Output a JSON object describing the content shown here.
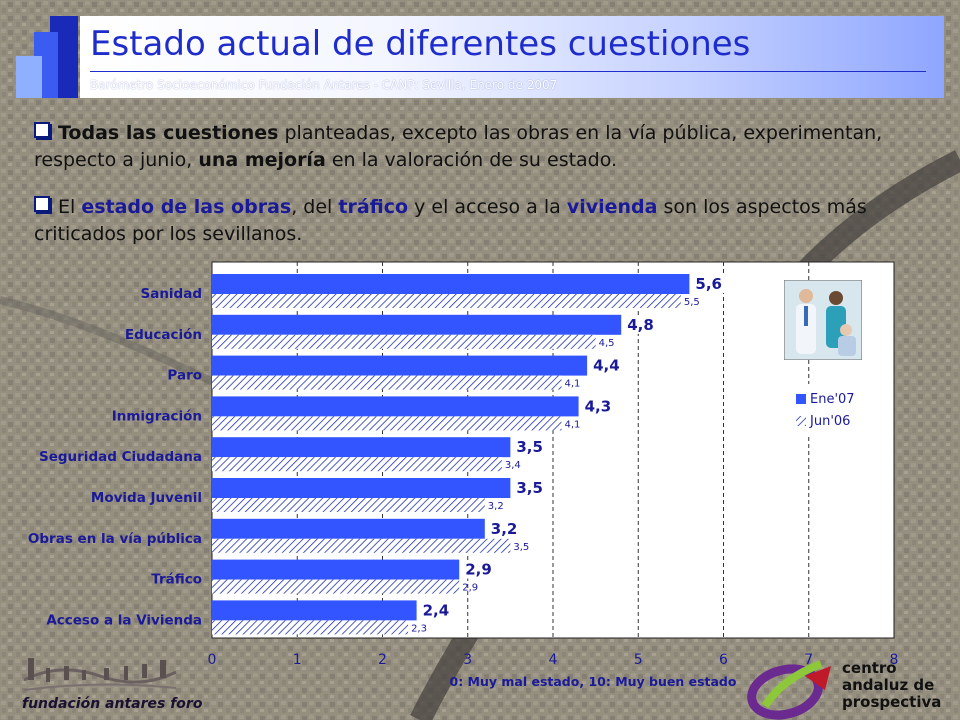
{
  "header": {
    "title": "Estado actual de diferentes cuestiones",
    "subtitle": "Barómetro Socioeconómico Fundación Antares - CANP: Sevilla, Enero de 2007"
  },
  "bullets": [
    {
      "parts": [
        {
          "t": "Todas las cuestiones",
          "s": "bold"
        },
        {
          "t": " planteadas, excepto las obras en la vía pública, experimentan, respecto a junio, ",
          "s": "normal"
        },
        {
          "t": "una mejoría",
          "s": "bold"
        },
        {
          "t": " en la valoración de su estado.",
          "s": "normal"
        }
      ]
    },
    {
      "parts": [
        {
          "t": "El ",
          "s": "normal"
        },
        {
          "t": "estado de las obras",
          "s": "blue"
        },
        {
          "t": ", del ",
          "s": "normal"
        },
        {
          "t": "tráfico",
          "s": "blue"
        },
        {
          "t": " y el acceso a la ",
          "s": "normal"
        },
        {
          "t": "vivienda",
          "s": "blue"
        },
        {
          "t": " son los aspectos más criticados por los sevillanos.",
          "s": "normal"
        }
      ]
    }
  ],
  "logos": {
    "left": "fundación antares foro",
    "right_lines": [
      "centro",
      "andaluz de",
      "prospectiva"
    ]
  },
  "colors": {
    "title": "#1e2ccc",
    "bar": "#3355ff",
    "label": "#1a1a99"
  },
  "chart_data": {
    "type": "bar",
    "orientation": "horizontal",
    "categories": [
      "Sanidad",
      "Educación",
      "Paro",
      "Inmigración",
      "Seguridad Ciudadana",
      "Movida Juvenil",
      "Obras en la vía pública",
      "Tráfico",
      "Acceso a la Vivienda"
    ],
    "series": [
      {
        "name": "Ene'07",
        "values": [
          5.6,
          4.8,
          4.4,
          4.3,
          3.5,
          3.5,
          3.2,
          2.9,
          2.4
        ],
        "labels": [
          "5,6",
          "4,8",
          "4,4",
          "4,3",
          "3,5",
          "3,5",
          "3,2",
          "2,9",
          "2,4"
        ],
        "fill": "solid"
      },
      {
        "name": "Jun'06",
        "values": [
          5.5,
          4.5,
          4.1,
          4.1,
          3.4,
          3.2,
          3.5,
          2.9,
          2.3
        ],
        "labels": [
          "5,5",
          "4,5",
          "4,1",
          "4,1",
          "3,4",
          "3,2",
          "3,5",
          "2,9",
          "2,3"
        ],
        "fill": "hatched"
      }
    ],
    "xlabel": "0: Muy mal estado, 10: Muy buen estado",
    "xlim": [
      0,
      8
    ],
    "xticks": [
      "0",
      "1",
      "2",
      "3",
      "4",
      "5",
      "6",
      "7",
      "8"
    ],
    "grid": "vertical dashed",
    "legend": "right"
  }
}
